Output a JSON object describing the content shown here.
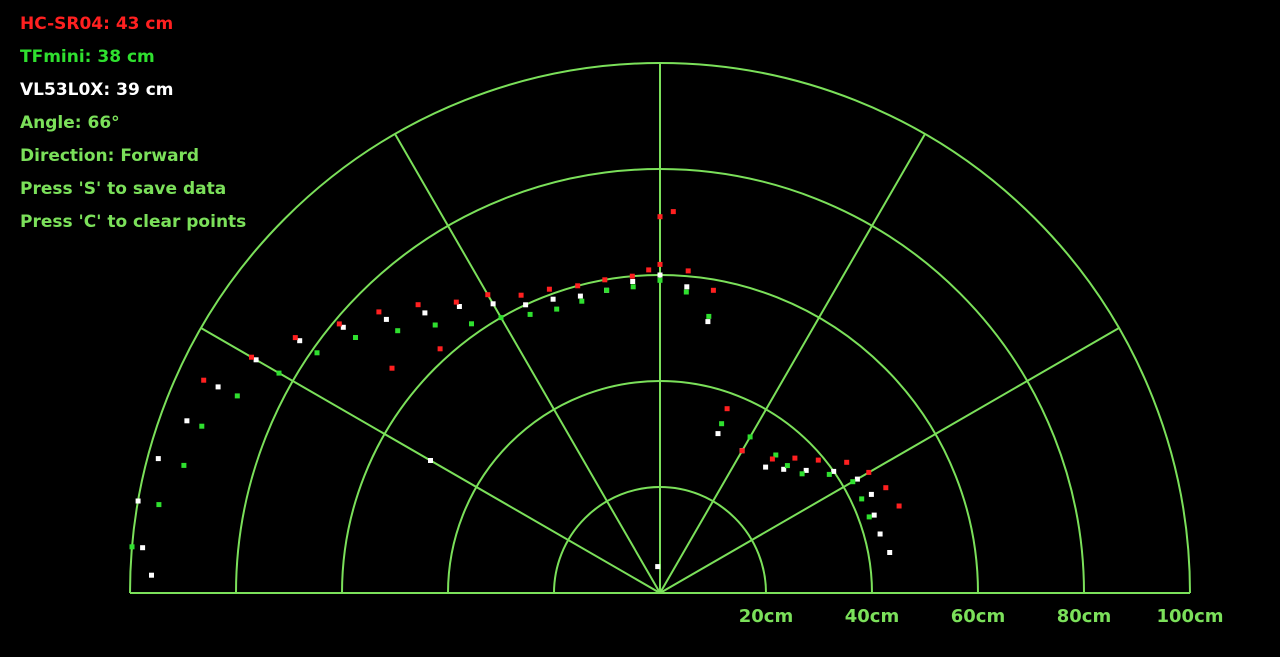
{
  "colors": {
    "background": "#000000",
    "grid": "#7be05a",
    "text_green": "#7be05a",
    "hcsr04": "#ff2020",
    "tfmini": "#2fe02f",
    "vl53l0x": "#ffffff"
  },
  "readouts": [
    {
      "key": "hcsr04",
      "label": "HC-SR04",
      "value": "43",
      "unit": "cm",
      "text": "HC-SR04: 43 cm",
      "color": "#ff2020"
    },
    {
      "key": "tfmini",
      "label": "TFmini",
      "value": "38",
      "unit": "cm",
      "text": "TFmini: 38 cm",
      "color": "#2fe02f"
    },
    {
      "key": "vl53l0x",
      "label": "VL53L0X",
      "value": "39",
      "unit": "cm",
      "text": "VL53L0X: 39 cm",
      "color": "#ffffff"
    },
    {
      "key": "angle",
      "text": "Angle: 66°",
      "color": "#7be05a"
    },
    {
      "key": "direction",
      "text": "Direction: Forward",
      "color": "#7be05a"
    },
    {
      "key": "save_hint",
      "text": "Press 'S' to save data",
      "color": "#7be05a"
    },
    {
      "key": "clear_hint",
      "text": "Press 'C' to clear points",
      "color": "#7be05a"
    }
  ],
  "radar": {
    "max_range_cm": 100,
    "current_angle_deg": 66,
    "direction": "Forward",
    "range_rings_cm": [
      20,
      40,
      60,
      80,
      100
    ],
    "range_labels": [
      "20cm",
      "40cm",
      "60cm",
      "80cm",
      "100cm"
    ],
    "angle_lines_deg": [
      0,
      30,
      60,
      90,
      120,
      150,
      180
    ]
  },
  "sensor_points": {
    "hcsr04": [
      {
        "angle": 20,
        "dist": 48
      },
      {
        "angle": 25,
        "dist": 47
      },
      {
        "angle": 30,
        "dist": 45.5
      },
      {
        "angle": 35,
        "dist": 43
      },
      {
        "angle": 40,
        "dist": 39
      },
      {
        "angle": 45,
        "dist": 36
      },
      {
        "angle": 50,
        "dist": 33
      },
      {
        "angle": 60,
        "dist": 31
      },
      {
        "angle": 70,
        "dist": 37
      },
      {
        "angle": 80,
        "dist": 58
      },
      {
        "angle": 85,
        "dist": 61
      },
      {
        "angle": 90,
        "dist": 62
      },
      {
        "angle": 92,
        "dist": 61
      },
      {
        "angle": 95,
        "dist": 60
      },
      {
        "angle": 100,
        "dist": 60
      },
      {
        "angle": 105,
        "dist": 60
      },
      {
        "angle": 110,
        "dist": 61
      },
      {
        "angle": 115,
        "dist": 62
      },
      {
        "angle": 120,
        "dist": 65
      },
      {
        "angle": 125,
        "dist": 67
      },
      {
        "angle": 130,
        "dist": 71
      },
      {
        "angle": 135,
        "dist": 75
      },
      {
        "angle": 140,
        "dist": 79
      },
      {
        "angle": 145,
        "dist": 84
      },
      {
        "angle": 150,
        "dist": 89
      },
      {
        "angle": 155,
        "dist": 95
      },
      {
        "angle": 88,
        "dist": 72
      },
      {
        "angle": 90,
        "dist": 71
      },
      {
        "angle": 132,
        "dist": 62
      },
      {
        "angle": 140,
        "dist": 66
      }
    ],
    "tfmini": [
      {
        "angle": 20,
        "dist": 42
      },
      {
        "angle": 25,
        "dist": 42
      },
      {
        "angle": 30,
        "dist": 42
      },
      {
        "angle": 35,
        "dist": 39
      },
      {
        "angle": 40,
        "dist": 35
      },
      {
        "angle": 45,
        "dist": 34
      },
      {
        "angle": 50,
        "dist": 34
      },
      {
        "angle": 60,
        "dist": 34
      },
      {
        "angle": 70,
        "dist": 34
      },
      {
        "angle": 80,
        "dist": 53
      },
      {
        "angle": 85,
        "dist": 57
      },
      {
        "angle": 90,
        "dist": 59
      },
      {
        "angle": 95,
        "dist": 58
      },
      {
        "angle": 100,
        "dist": 58
      },
      {
        "angle": 105,
        "dist": 57
      },
      {
        "angle": 110,
        "dist": 57
      },
      {
        "angle": 115,
        "dist": 58
      },
      {
        "angle": 120,
        "dist": 60
      },
      {
        "angle": 125,
        "dist": 62
      },
      {
        "angle": 130,
        "dist": 66
      },
      {
        "angle": 135,
        "dist": 70
      },
      {
        "angle": 140,
        "dist": 75
      },
      {
        "angle": 145,
        "dist": 79
      },
      {
        "angle": 150,
        "dist": 83
      },
      {
        "angle": 155,
        "dist": 88
      },
      {
        "angle": 160,
        "dist": 92
      },
      {
        "angle": 165,
        "dist": 93
      },
      {
        "angle": 170,
        "dist": 96
      },
      {
        "angle": 175,
        "dist": 100
      }
    ],
    "vl53l0x": [
      {
        "angle": 10,
        "dist": 44
      },
      {
        "angle": 15,
        "dist": 43
      },
      {
        "angle": 20,
        "dist": 43
      },
      {
        "angle": 25,
        "dist": 44
      },
      {
        "angle": 30,
        "dist": 43
      },
      {
        "angle": 35,
        "dist": 40
      },
      {
        "angle": 40,
        "dist": 36
      },
      {
        "angle": 45,
        "dist": 33
      },
      {
        "angle": 50,
        "dist": 31
      },
      {
        "angle": 60,
        "dist": 31
      },
      {
        "angle": 70,
        "dist": 32
      },
      {
        "angle": 80,
        "dist": 52
      },
      {
        "angle": 85,
        "dist": 58
      },
      {
        "angle": 90,
        "dist": 60
      },
      {
        "angle": 95,
        "dist": 59
      },
      {
        "angle": 100,
        "dist": 58
      },
      {
        "angle": 105,
        "dist": 58
      },
      {
        "angle": 110,
        "dist": 59
      },
      {
        "angle": 115,
        "dist": 60
      },
      {
        "angle": 120,
        "dist": 63
      },
      {
        "angle": 125,
        "dist": 66
      },
      {
        "angle": 130,
        "dist": 69
      },
      {
        "angle": 135,
        "dist": 73
      },
      {
        "angle": 140,
        "dist": 78
      },
      {
        "angle": 145,
        "dist": 83
      },
      {
        "angle": 150,
        "dist": 88
      },
      {
        "angle": 155,
        "dist": 92
      },
      {
        "angle": 160,
        "dist": 95
      },
      {
        "angle": 165,
        "dist": 98
      },
      {
        "angle": 170,
        "dist": 100
      },
      {
        "angle": 175,
        "dist": 98
      },
      {
        "angle": 178,
        "dist": 96
      },
      {
        "angle": 95,
        "dist": 5
      },
      {
        "angle": 150,
        "dist": 50
      }
    ]
  }
}
